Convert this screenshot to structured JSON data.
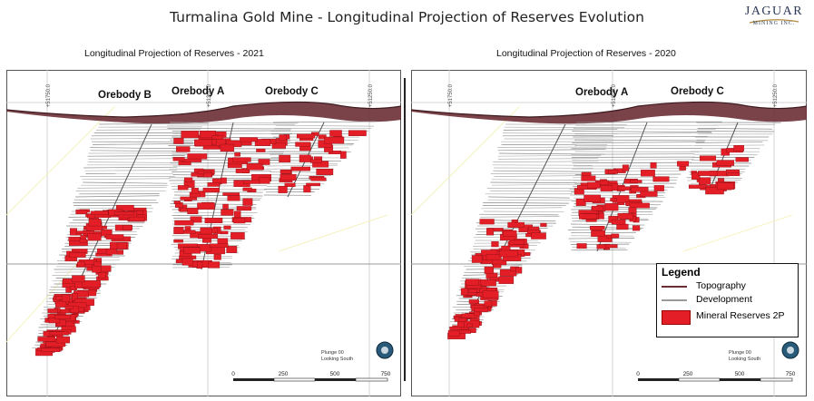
{
  "main_title": "Turmalina Gold Mine - Longitudinal Projection of Reserves Evolution",
  "logo": {
    "word": "JAGUAR",
    "sub": "MINING INC."
  },
  "colors": {
    "reserve_red": "#e41e26",
    "topography": "#6b2e35",
    "development": "#9a9a9a",
    "grid": "#c9c9c9"
  },
  "panels": [
    {
      "title": "Longitudinal Projection of Reserves - 2021",
      "orebody_labels": [
        "Orebody B",
        "Orebody A",
        "Orebody C"
      ],
      "coord_labels": [
        "+51750.0",
        "+51300.0",
        "+51250.0"
      ],
      "footer": {
        "plunge": "Plunge 00",
        "looking": "Looking South"
      },
      "scale_labels": [
        "0",
        "250",
        "500",
        "750"
      ]
    },
    {
      "title": "Longitudinal Projection of Reserves - 2020",
      "orebody_labels": [
        "Orebody A",
        "Orebody C"
      ],
      "coord_labels": [
        "+51750.0",
        "+51300.0",
        "+51250.0"
      ],
      "footer": {
        "plunge": "Plunge 00",
        "looking": "Looking South"
      },
      "scale_labels": [
        "0",
        "250",
        "500",
        "750"
      ]
    }
  ],
  "legend": {
    "title": "Legend",
    "items": [
      {
        "label": "Topography",
        "symbol": "line"
      },
      {
        "label": "Development",
        "symbol": "line"
      },
      {
        "label": "Mineral Reserves 2P",
        "symbol": "box"
      }
    ]
  }
}
